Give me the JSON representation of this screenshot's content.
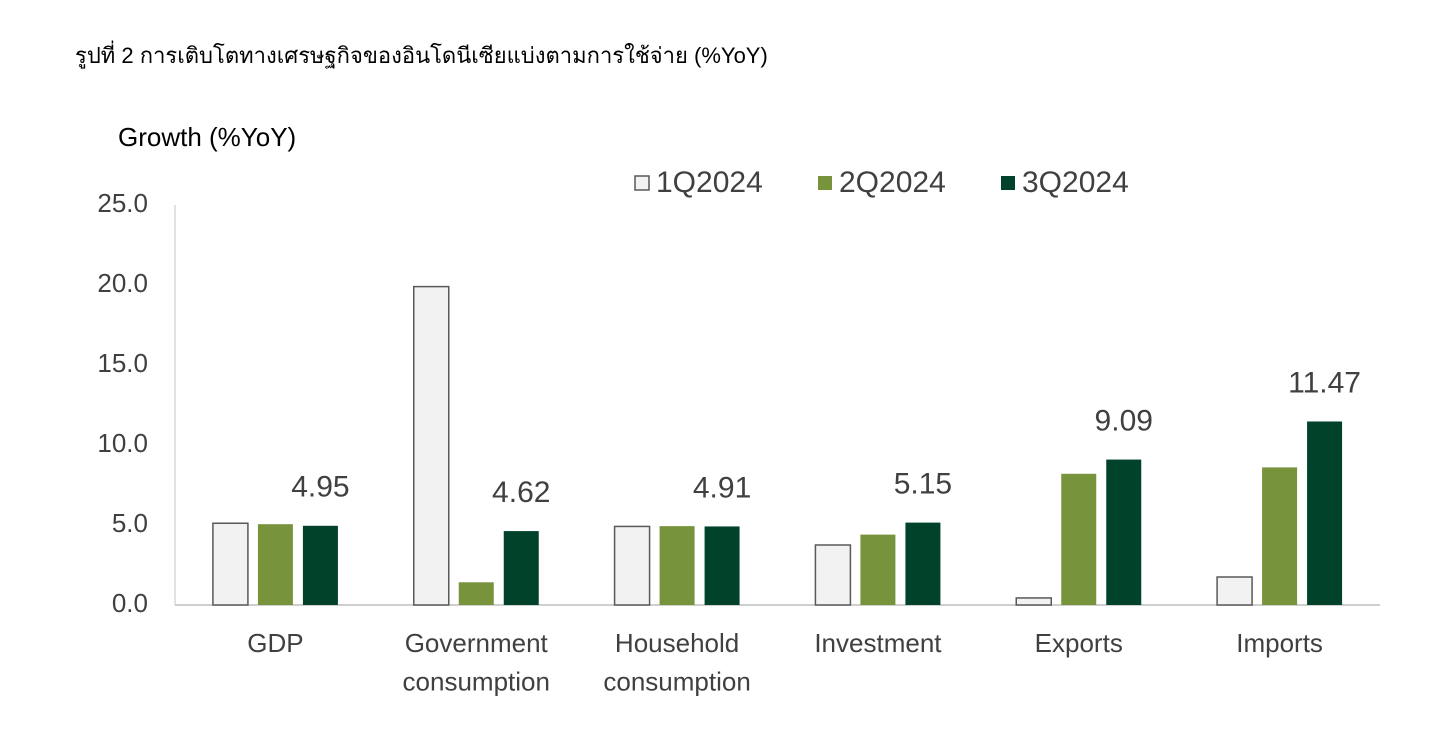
{
  "chart_data": {
    "type": "bar",
    "title": "รูปที่ 2 การเติบโตทางเศรษฐกิจของอินโดนีเซียแบ่งตามการใช้จ่าย (%YoY)",
    "y_label": "Growth (%YoY)",
    "categories": [
      "GDP",
      "Government consumption",
      "Household consumption",
      "Investment",
      "Exports",
      "Imports"
    ],
    "series": [
      {
        "name": "1Q2024",
        "color": "#f2f2f2",
        "edge": "#595959",
        "values": [
          5.11,
          19.9,
          4.91,
          3.75,
          0.44,
          1.75
        ]
      },
      {
        "name": "2Q2024",
        "color": "#77933c",
        "values": [
          5.05,
          1.42,
          4.93,
          4.4,
          8.2,
          8.6
        ]
      },
      {
        "name": "3Q2024",
        "color": "#00432a",
        "values": [
          4.95,
          4.62,
          4.91,
          5.15,
          9.09,
          11.47
        ],
        "data_labels": true
      }
    ],
    "ylim": [
      0,
      25
    ],
    "yticks": [
      {
        "value": 0,
        "label": "0.0"
      },
      {
        "value": 5,
        "label": "5.0"
      },
      {
        "value": 10,
        "label": "10.0"
      },
      {
        "value": 15,
        "label": "15.0"
      },
      {
        "value": 20,
        "label": "20.0"
      },
      {
        "value": 25,
        "label": "25.0"
      }
    ],
    "grid": false
  }
}
